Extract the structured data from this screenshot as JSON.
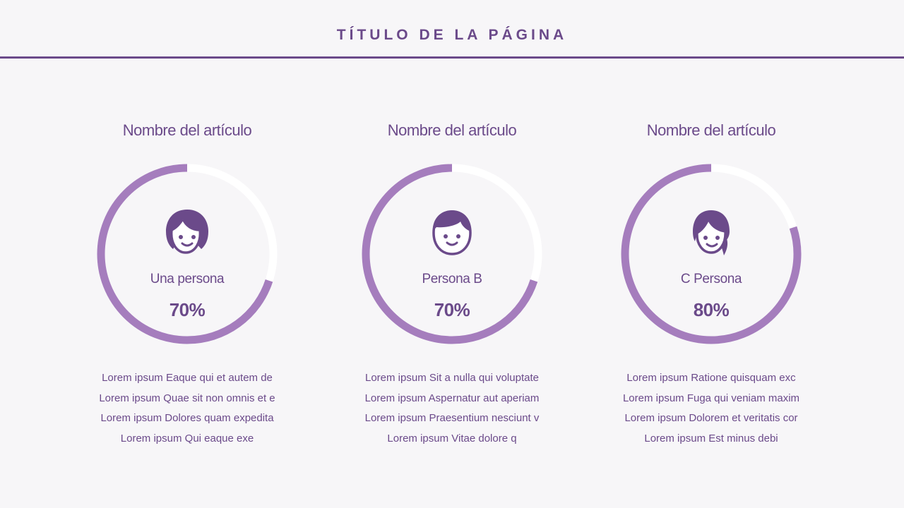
{
  "header": {
    "title": "TÍTULO DE LA PÁGINA"
  },
  "colors": {
    "accent": "#6b4a8a",
    "ring": "#a57dbd",
    "ring_track": "#ffffff",
    "background": "#f7f6f8"
  },
  "cards": [
    {
      "title": "Nombre del artículo",
      "person": "Una persona",
      "percent_label": "70%",
      "progress": 0.7,
      "avatar_icon": "woman-avatar-icon",
      "lines": [
        "Lorem ipsum Eaque qui et autem de",
        "Lorem ipsum Quae sit non omnis et e",
        "Lorem ipsum Dolores quam expedita",
        "Lorem ipsum Qui eaque exe"
      ]
    },
    {
      "title": "Nombre del artículo",
      "person": "Persona B",
      "percent_label": "70%",
      "progress": 0.7,
      "avatar_icon": "man-avatar-icon",
      "lines": [
        "Lorem ipsum Sit a nulla qui voluptate",
        "Lorem ipsum Aspernatur aut aperiam",
        "Lorem ipsum Praesentium nesciunt v",
        "Lorem ipsum Vitae dolore q"
      ]
    },
    {
      "title": "Nombre del artículo",
      "person": "C Persona",
      "percent_label": "80%",
      "progress": 0.8,
      "avatar_icon": "girl-ponytail-avatar-icon",
      "lines": [
        "Lorem ipsum Ratione quisquam exc",
        "Lorem ipsum Fuga qui veniam maxim",
        "Lorem ipsum Dolorem et veritatis cor",
        "Lorem ipsum Est minus debi"
      ]
    }
  ]
}
